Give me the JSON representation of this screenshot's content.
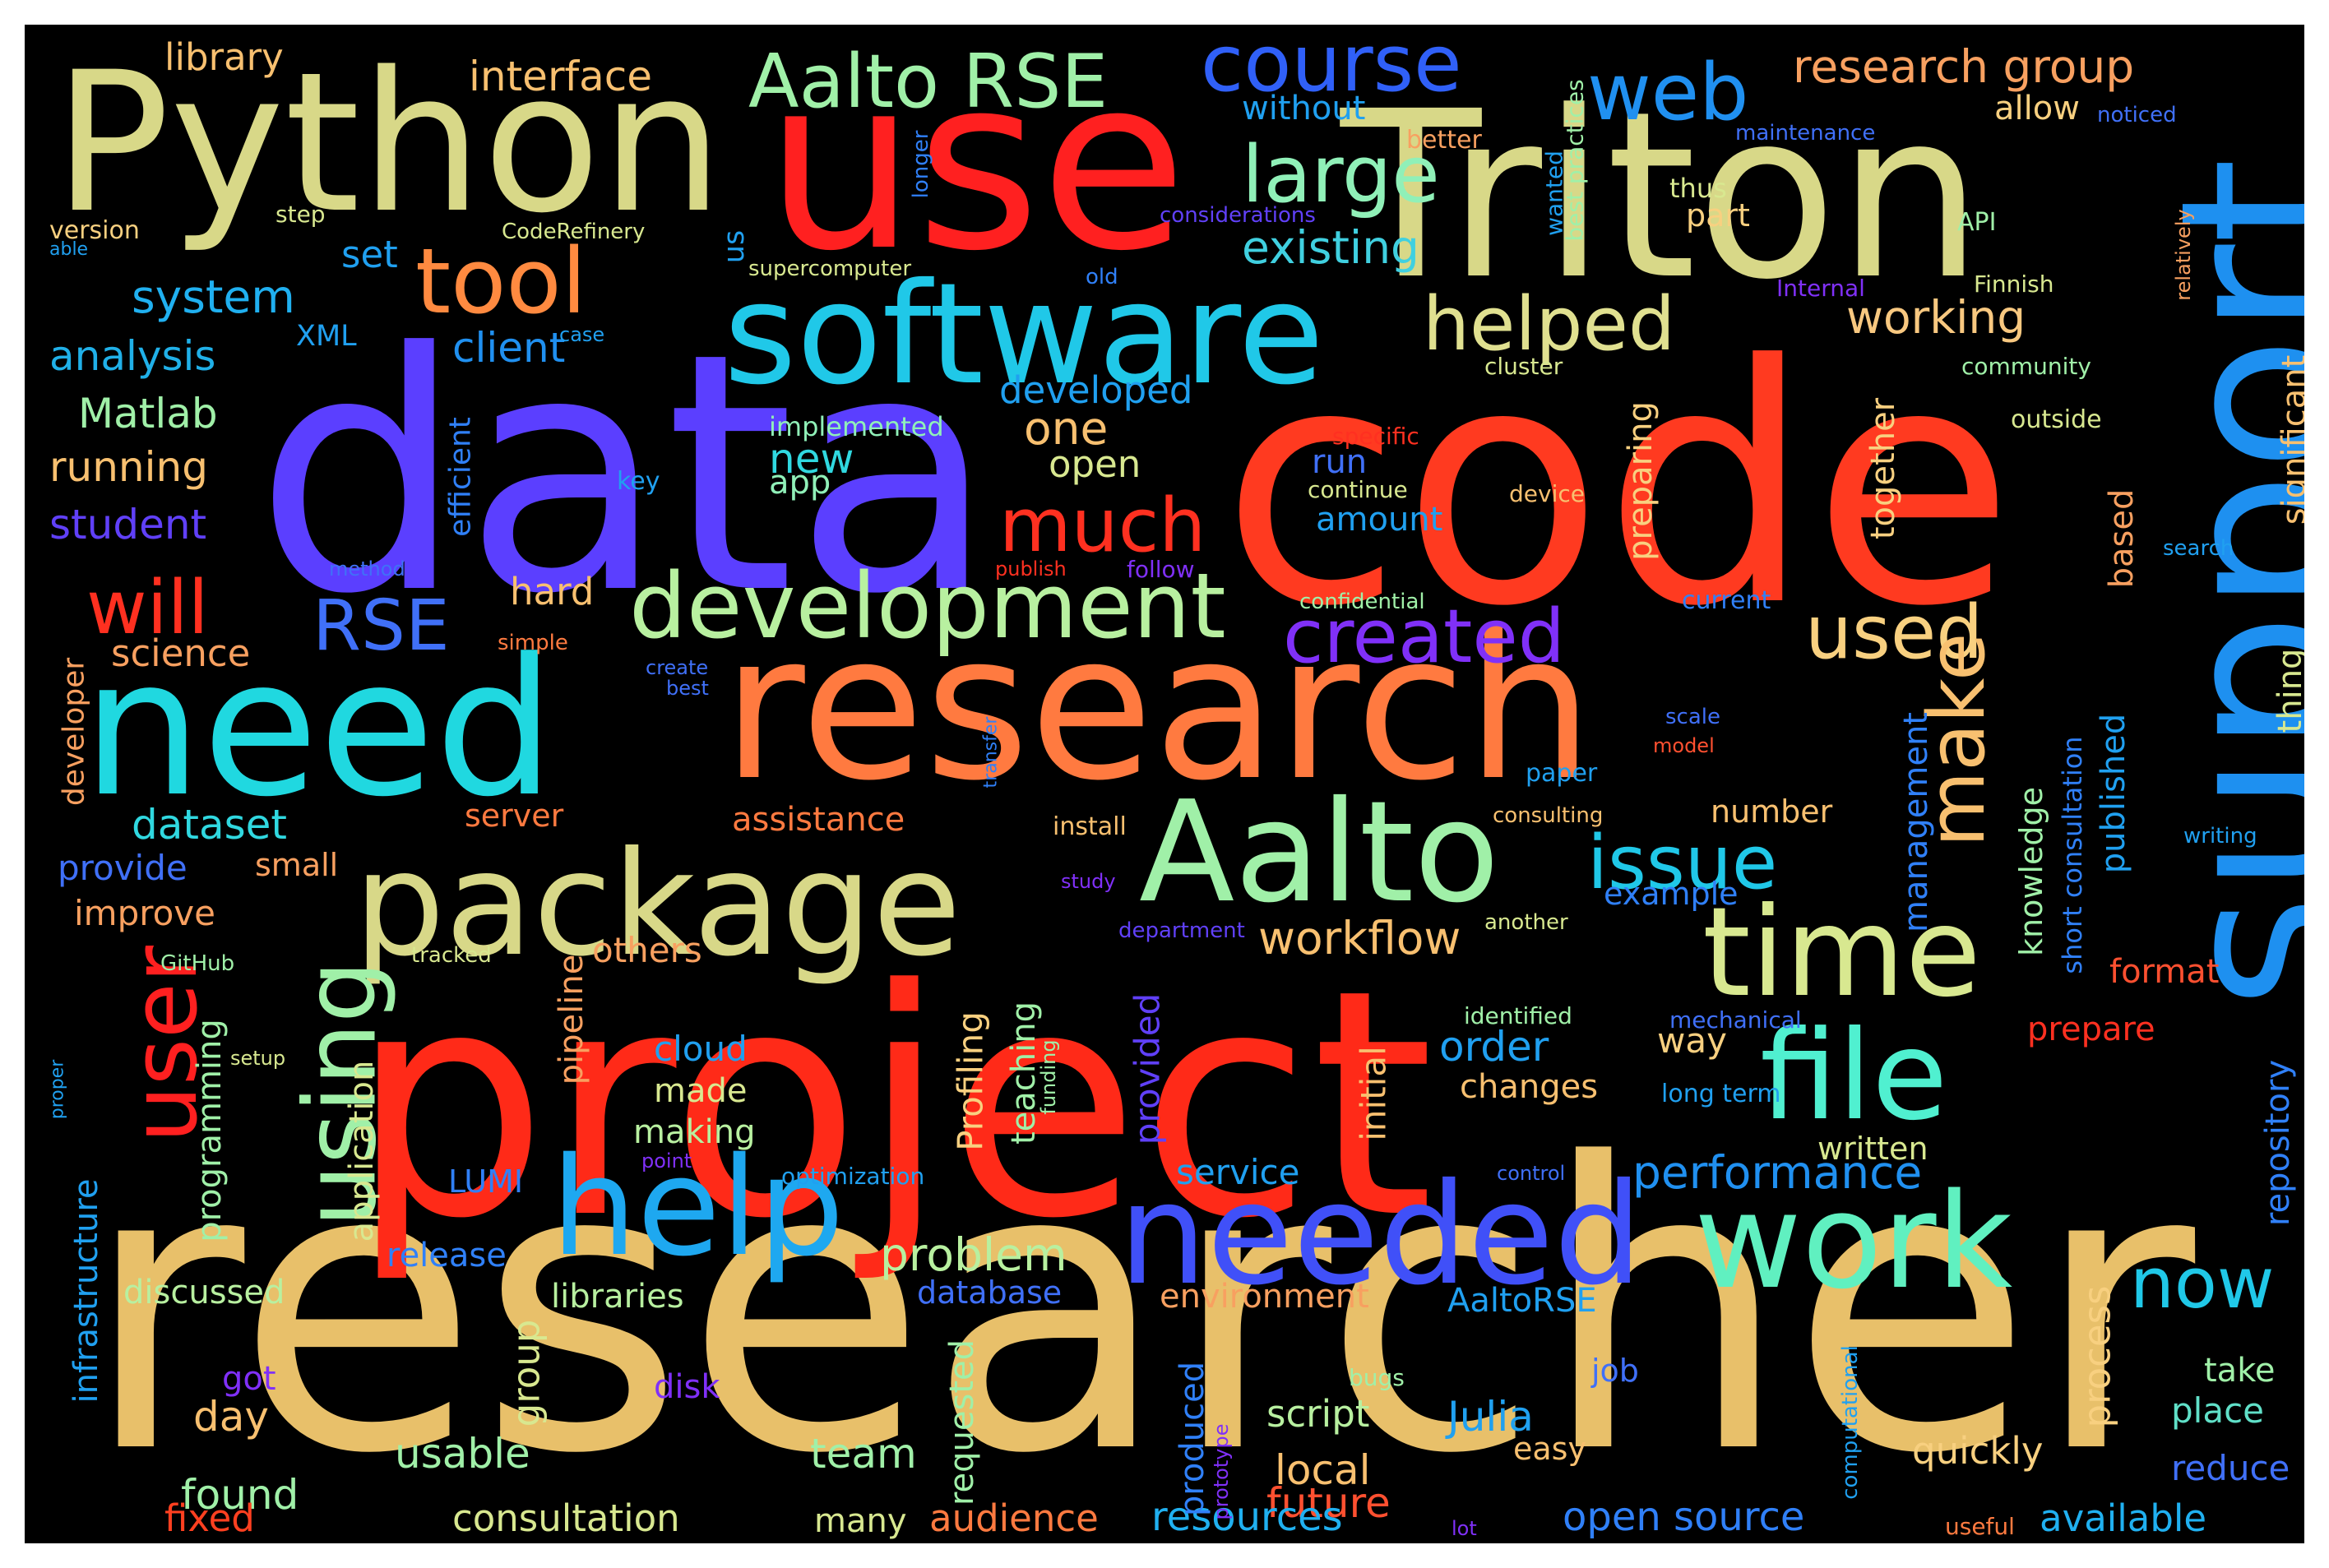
{
  "words": [
    {
      "text": "researcher",
      "color": "#E8C06A"
    },
    {
      "text": "project",
      "color": "#FF2A18"
    },
    {
      "text": "code",
      "color": "#FF3A20"
    },
    {
      "text": "data",
      "color": "#5B3FFF"
    },
    {
      "text": "research",
      "color": "#FF7A40"
    },
    {
      "text": "support",
      "color": "#1E90F0"
    },
    {
      "text": "Triton",
      "color": "#D8D888"
    },
    {
      "text": "use",
      "color": "#FF2020"
    },
    {
      "text": "Python",
      "color": "#D8D888"
    },
    {
      "text": "need",
      "color": "#20D8E0"
    },
    {
      "text": "software",
      "color": "#20C8E8"
    },
    {
      "text": "package",
      "color": "#D8D888"
    },
    {
      "text": "Aalto",
      "color": "#A0F0A8"
    },
    {
      "text": "needed",
      "color": "#4050F8"
    },
    {
      "text": "help",
      "color": "#1EA8F0"
    },
    {
      "text": "work",
      "color": "#60F0C0"
    },
    {
      "text": "time",
      "color": "#D8E890"
    },
    {
      "text": "file",
      "color": "#50F0D0"
    },
    {
      "text": "using",
      "color": "#A0F0A8"
    },
    {
      "text": "user",
      "color": "#FF2020"
    },
    {
      "text": "development",
      "color": "#B8F0A0"
    },
    {
      "text": "tool",
      "color": "#FF8A40"
    },
    {
      "text": "web",
      "color": "#2090F0"
    },
    {
      "text": "course",
      "color": "#3060F8"
    },
    {
      "text": "Aalto RSE",
      "color": "#A0F0A8"
    },
    {
      "text": "large",
      "color": "#90F0B8"
    },
    {
      "text": "helped",
      "color": "#E0E090"
    },
    {
      "text": "created",
      "color": "#8030F8"
    },
    {
      "text": "used",
      "color": "#F8D080"
    },
    {
      "text": "make",
      "color": "#F8C070"
    },
    {
      "text": "issue",
      "color": "#20C8E8"
    },
    {
      "text": "much",
      "color": "#FF3020"
    },
    {
      "text": "will",
      "color": "#FF3020"
    },
    {
      "text": "RSE",
      "color": "#4070F8"
    },
    {
      "text": "now",
      "color": "#20C8E8"
    },
    {
      "text": "research group",
      "color": "#F8A060"
    },
    {
      "text": "interface",
      "color": "#F8C070"
    },
    {
      "text": "system",
      "color": "#20B0F0"
    },
    {
      "text": "existing",
      "color": "#40D0E0"
    },
    {
      "text": "working",
      "color": "#F8C880"
    },
    {
      "text": "problem",
      "color": "#B8F0A0"
    },
    {
      "text": "workflow",
      "color": "#F8C070"
    },
    {
      "text": "performance",
      "color": "#2090F0"
    },
    {
      "text": "dataset",
      "color": "#30D8E0"
    },
    {
      "text": "developed",
      "color": "#20A0F0"
    },
    {
      "text": "analysis",
      "color": "#20B0E8"
    },
    {
      "text": "Matlab",
      "color": "#A0F0A8"
    },
    {
      "text": "running",
      "color": "#F8C070"
    },
    {
      "text": "student",
      "color": "#6040F8"
    },
    {
      "text": "client",
      "color": "#2090F0"
    },
    {
      "text": "library",
      "color": "#F8C070"
    },
    {
      "text": "one",
      "color": "#F8C070"
    },
    {
      "text": "new",
      "color": "#30D8E0"
    },
    {
      "text": "open",
      "color": "#D8E890"
    },
    {
      "text": "set",
      "color": "#20A0F0"
    },
    {
      "text": "hard",
      "color": "#F8C070"
    },
    {
      "text": "science",
      "color": "#F8A060"
    },
    {
      "text": "Julia",
      "color": "#20A0F0"
    },
    {
      "text": "order",
      "color": "#20A0F0"
    },
    {
      "text": "script",
      "color": "#B8F0A0"
    },
    {
      "text": "usable",
      "color": "#A0F0A8"
    },
    {
      "text": "team",
      "color": "#A0F0A8"
    },
    {
      "text": "found",
      "color": "#A0F0A8"
    },
    {
      "text": "day",
      "color": "#F8C070"
    },
    {
      "text": "local",
      "color": "#F8C070"
    },
    {
      "text": "future",
      "color": "#FF5030"
    },
    {
      "text": "quickly",
      "color": "#F8D080"
    },
    {
      "text": "open source",
      "color": "#3080F8"
    },
    {
      "text": "resources",
      "color": "#20B0F0"
    },
    {
      "text": "consultation",
      "color": "#D8E890"
    },
    {
      "text": "audience",
      "color": "#FF7A40"
    },
    {
      "text": "available",
      "color": "#20B0F0"
    },
    {
      "text": "fixed",
      "color": "#FF4020"
    },
    {
      "text": "many",
      "color": "#D8E890"
    },
    {
      "text": "discussed",
      "color": "#B8F0A0"
    },
    {
      "text": "libraries",
      "color": "#B8F0A0"
    },
    {
      "text": "environment",
      "color": "#F8A060"
    },
    {
      "text": "AaltoRSE",
      "color": "#20A0F0"
    },
    {
      "text": "database",
      "color": "#4070F8"
    },
    {
      "text": "release",
      "color": "#3080F8"
    },
    {
      "text": "service",
      "color": "#20A0F0"
    },
    {
      "text": "LUMI",
      "color": "#3080F8"
    },
    {
      "text": "cloud",
      "color": "#20A0F0"
    },
    {
      "text": "made",
      "color": "#D8E890"
    },
    {
      "text": "making",
      "color": "#B8F0A0"
    },
    {
      "text": "others",
      "color": "#F8A060"
    },
    {
      "text": "improve",
      "color": "#F8A060"
    },
    {
      "text": "provide",
      "color": "#4070F8"
    },
    {
      "text": "small",
      "color": "#F8A060"
    },
    {
      "text": "assistance",
      "color": "#FF7A40"
    },
    {
      "text": "server",
      "color": "#FF7A40"
    },
    {
      "text": "number",
      "color": "#F8C070"
    },
    {
      "text": "example",
      "color": "#3080F8"
    },
    {
      "text": "way",
      "color": "#F8D080"
    },
    {
      "text": "changes",
      "color": "#F8C070"
    },
    {
      "text": "written",
      "color": "#D8E890"
    },
    {
      "text": "format",
      "color": "#FF5030"
    },
    {
      "text": "prepare",
      "color": "#FF3020"
    },
    {
      "text": "take",
      "color": "#A0F0A8"
    },
    {
      "text": "place",
      "color": "#60E0C8"
    },
    {
      "text": "reduce",
      "color": "#4070F8"
    },
    {
      "text": "job",
      "color": "#4070F8"
    },
    {
      "text": "easy",
      "color": "#F8C070"
    },
    {
      "text": "got",
      "color": "#8030F8"
    },
    {
      "text": "disk",
      "color": "#8030F8"
    },
    {
      "text": "amount",
      "color": "#20A0F0"
    },
    {
      "text": "run",
      "color": "#4070F8"
    },
    {
      "text": "app",
      "color": "#90F0B8"
    },
    {
      "text": "allow",
      "color": "#F8D080"
    },
    {
      "text": "part",
      "color": "#F8D080"
    },
    {
      "text": "thus",
      "color": "#D8E890"
    },
    {
      "text": "without",
      "color": "#20A0F0"
    },
    {
      "text": "better",
      "color": "#F8A060"
    },
    {
      "text": "XML",
      "color": "#20A0F0"
    },
    {
      "text": "version",
      "color": "#F8D080"
    },
    {
      "text": "step",
      "color": "#D8E890"
    },
    {
      "text": "able",
      "color": "#20A0F0"
    },
    {
      "text": "CodeRefinery",
      "color": "#D8E890"
    },
    {
      "text": "us",
      "color": "#20A0F0"
    },
    {
      "text": "supercomputer",
      "color": "#D8E890"
    },
    {
      "text": "old",
      "color": "#3080F8"
    },
    {
      "text": "case",
      "color": "#20A0F0"
    },
    {
      "text": "implemented",
      "color": "#90F0B8"
    },
    {
      "text": "key",
      "color": "#20A0F0"
    },
    {
      "text": "method",
      "color": "#4070F8"
    },
    {
      "text": "publish",
      "color": "#FF3020"
    },
    {
      "text": "follow",
      "color": "#8030F8"
    },
    {
      "text": "continue",
      "color": "#D8E890"
    },
    {
      "text": "device",
      "color": "#F8C070"
    },
    {
      "text": "specific",
      "color": "#FF3020"
    },
    {
      "text": "cluster",
      "color": "#D8E890"
    },
    {
      "text": "community",
      "color": "#A0F0A8"
    },
    {
      "text": "outside",
      "color": "#D8E890"
    },
    {
      "text": "Internal",
      "color": "#8030F8"
    },
    {
      "text": "Finnish",
      "color": "#D8E890"
    },
    {
      "text": "API",
      "color": "#A0F0A8"
    },
    {
      "text": "maintenance",
      "color": "#4070F8"
    },
    {
      "text": "noticed",
      "color": "#4070F8"
    },
    {
      "text": "considerations",
      "color": "#6040F8"
    },
    {
      "text": "search",
      "color": "#20A0F0"
    },
    {
      "text": "confidential",
      "color": "#A0F0A8"
    },
    {
      "text": "current",
      "color": "#3080F8"
    },
    {
      "text": "simple",
      "color": "#FF7A40"
    },
    {
      "text": "create",
      "color": "#4070F8"
    },
    {
      "text": "best",
      "color": "#4070F8"
    },
    {
      "text": "scale",
      "color": "#4070F8"
    },
    {
      "text": "model",
      "color": "#FF5030"
    },
    {
      "text": "paper",
      "color": "#20A0F0"
    },
    {
      "text": "consulting",
      "color": "#F8C070"
    },
    {
      "text": "install",
      "color": "#F8C070"
    },
    {
      "text": "study",
      "color": "#8030F8"
    },
    {
      "text": "department",
      "color": "#6040F8"
    },
    {
      "text": "another",
      "color": "#D8E890"
    },
    {
      "text": "identified",
      "color": "#A0F0A8"
    },
    {
      "text": "mechanical",
      "color": "#4070F8"
    },
    {
      "text": "long term",
      "color": "#20A0F0"
    },
    {
      "text": "control",
      "color": "#4070F8"
    },
    {
      "text": "optimization",
      "color": "#20A0F0"
    },
    {
      "text": "point",
      "color": "#8030F8"
    },
    {
      "text": "bugs",
      "color": "#A0F0A8"
    },
    {
      "text": "lot",
      "color": "#8030F8"
    },
    {
      "text": "useful",
      "color": "#FF7A40"
    },
    {
      "text": "writing",
      "color": "#20A0F0"
    },
    {
      "text": "tracked",
      "color": "#D8E890"
    },
    {
      "text": "GitHub",
      "color": "#A0F0A8"
    },
    {
      "text": "setup",
      "color": "#D8E890"
    },
    {
      "text": "proper",
      "color": "#20A0F0"
    },
    {
      "text": "efficient",
      "color": "#3080F8"
    },
    {
      "text": "developer",
      "color": "#F8A060"
    },
    {
      "text": "infrastructure",
      "color": "#20A0F0"
    },
    {
      "text": "programming",
      "color": "#A0F0A8"
    },
    {
      "text": "application",
      "color": "#D8E890"
    },
    {
      "text": "pipeline",
      "color": "#F8A060"
    },
    {
      "text": "group",
      "color": "#D8E890"
    },
    {
      "text": "Profiling",
      "color": "#F8D080"
    },
    {
      "text": "teaching",
      "color": "#A0F0A8"
    },
    {
      "text": "funding",
      "color": "#A0F0A8"
    },
    {
      "text": "provided",
      "color": "#6040F8"
    },
    {
      "text": "initial",
      "color": "#F8C070"
    },
    {
      "text": "requested",
      "color": "#A0F0A8"
    },
    {
      "text": "produced",
      "color": "#3080F8"
    },
    {
      "text": "prototype",
      "color": "#8030F8"
    },
    {
      "text": "computational",
      "color": "#20A0F0"
    },
    {
      "text": "preparing",
      "color": "#F8D080"
    },
    {
      "text": "together",
      "color": "#F8D080"
    },
    {
      "text": "management",
      "color": "#3080F8"
    },
    {
      "text": "knowledge",
      "color": "#A0F0A8"
    },
    {
      "text": "short consultation",
      "color": "#3080F8"
    },
    {
      "text": "published",
      "color": "#20A0F0"
    },
    {
      "text": "based",
      "color": "#F8A060"
    },
    {
      "text": "process",
      "color": "#F8D080"
    },
    {
      "text": "repository",
      "color": "#3080F8"
    },
    {
      "text": "thing",
      "color": "#D8E890"
    },
    {
      "text": "significant",
      "color": "#F8C070"
    },
    {
      "text": "relatively",
      "color": "#F8A060"
    },
    {
      "text": "best practices",
      "color": "#A0F0A8"
    },
    {
      "text": "wanted",
      "color": "#20A0F0"
    },
    {
      "text": "longer",
      "color": "#3080F8"
    },
    {
      "text": "transfer",
      "color": "#3080F8"
    }
  ]
}
